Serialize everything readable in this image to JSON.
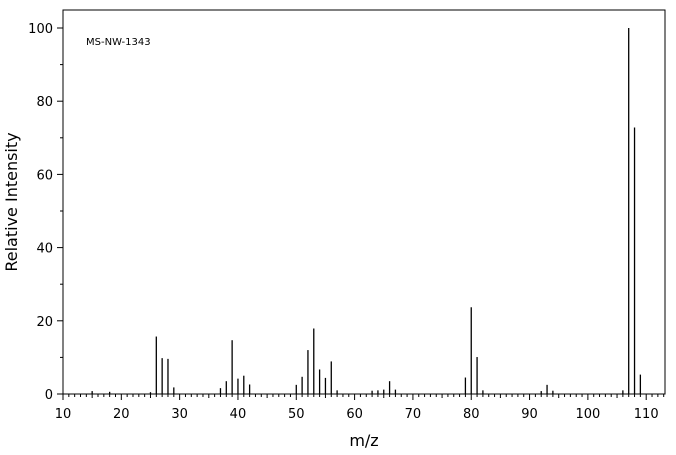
{
  "chart_data": {
    "type": "bar",
    "title": "",
    "annotation": "MS-NW-1343",
    "xlabel": "m/z",
    "ylabel": "Relative Intensity",
    "xlim": [
      10,
      113
    ],
    "ylim": [
      0,
      105
    ],
    "x_ticks": [
      10,
      20,
      30,
      40,
      50,
      60,
      70,
      80,
      90,
      100,
      110
    ],
    "y_ticks": [
      0,
      20,
      40,
      60,
      80,
      100
    ],
    "grid": false,
    "legend": "none",
    "series": [
      {
        "points": [
          [
            15,
            0.8
          ],
          [
            18,
            0.6
          ],
          [
            25,
            0.5
          ],
          [
            26,
            15.7
          ],
          [
            27,
            9.8
          ],
          [
            28,
            9.6
          ],
          [
            29,
            1.8
          ],
          [
            37,
            1.6
          ],
          [
            38,
            3.5
          ],
          [
            39,
            14.7
          ],
          [
            40,
            4.2
          ],
          [
            41,
            5.0
          ],
          [
            42,
            2.6
          ],
          [
            50,
            2.5
          ],
          [
            51,
            4.7
          ],
          [
            52,
            12.0
          ],
          [
            53,
            17.9
          ],
          [
            54,
            6.7
          ],
          [
            55,
            4.4
          ],
          [
            56,
            8.9
          ],
          [
            57,
            1.0
          ],
          [
            63,
            0.9
          ],
          [
            64,
            1.0
          ],
          [
            65,
            1.2
          ],
          [
            66,
            3.5
          ],
          [
            67,
            1.2
          ],
          [
            79,
            4.5
          ],
          [
            80,
            23.7
          ],
          [
            81,
            10.1
          ],
          [
            82,
            1.0
          ],
          [
            92,
            0.8
          ],
          [
            93,
            2.5
          ],
          [
            94,
            0.9
          ],
          [
            106,
            1.0
          ],
          [
            107,
            100.0
          ],
          [
            108,
            72.8
          ],
          [
            109,
            5.3
          ]
        ]
      }
    ]
  }
}
